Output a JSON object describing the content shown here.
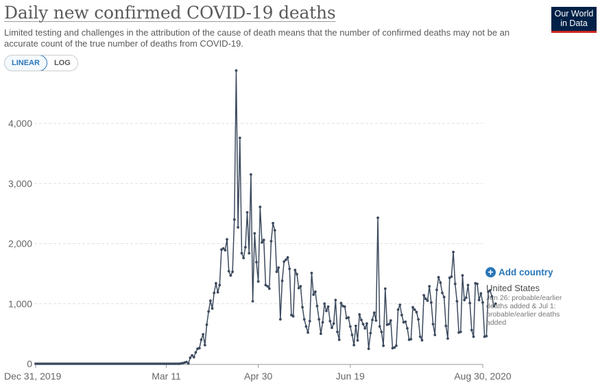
{
  "title": "Daily new confirmed COVID-19 deaths",
  "subtitle": "Limited testing and challenges in the attribution of the cause of death means that the number of confirmed deaths may not be an accurate count of the true number of deaths from COVID-19.",
  "logo": {
    "line1": "Our World",
    "line2": "in Data"
  },
  "scale_toggle": {
    "linear": "LINEAR",
    "log": "LOG",
    "active": "linear"
  },
  "add_country_label": "Add country",
  "entity_label": "United States",
  "annotation": "Jun 26: probable/earlier deaths added & Jul 1: probable/earlier deaths added",
  "colors": {
    "line": "#3c4a5e",
    "grid": "#dddddd",
    "axis_text": "#666666",
    "link": "#2a76b9"
  },
  "chart_data": {
    "type": "line",
    "title": "Daily new confirmed COVID-19 deaths",
    "xlabel": "",
    "ylabel": "",
    "ylim": [
      0,
      4800
    ],
    "xlim": [
      "Dec 31, 2019",
      "Aug 30, 2020"
    ],
    "grid": true,
    "y_ticks": [
      {
        "value": 0,
        "label": "0"
      },
      {
        "value": 1000,
        "label": "1,000"
      },
      {
        "value": 2000,
        "label": "2,000"
      },
      {
        "value": 3000,
        "label": "3,000"
      },
      {
        "value": 4000,
        "label": "4,000"
      }
    ],
    "x_ticks": [
      {
        "day": 0,
        "label": "Dec 31, 2019"
      },
      {
        "day": 71,
        "label": "Mar 11"
      },
      {
        "day": 121,
        "label": "Apr 30"
      },
      {
        "day": 171,
        "label": "Jun 19"
      },
      {
        "day": 243,
        "label": "Aug 30, 2020"
      }
    ],
    "series": [
      {
        "name": "United States",
        "start_date": "2019-12-31",
        "values": [
          0,
          0,
          0,
          0,
          0,
          0,
          0,
          0,
          0,
          0,
          0,
          0,
          0,
          0,
          0,
          0,
          0,
          0,
          0,
          0,
          0,
          0,
          0,
          0,
          0,
          0,
          0,
          0,
          0,
          0,
          0,
          0,
          0,
          0,
          0,
          0,
          0,
          0,
          0,
          0,
          0,
          0,
          0,
          0,
          0,
          0,
          0,
          0,
          0,
          0,
          0,
          0,
          0,
          0,
          0,
          0,
          0,
          0,
          0,
          0,
          0,
          0,
          0,
          0,
          0,
          0,
          0,
          0,
          0,
          0,
          0,
          0,
          0,
          0,
          0,
          0,
          0,
          0,
          0,
          5,
          10,
          20,
          30,
          5,
          100,
          140,
          110,
          190,
          250,
          260,
          400,
          490,
          310,
          650,
          870,
          1050,
          920,
          1180,
          1340,
          1190,
          1310,
          1900,
          1920,
          1890,
          2070,
          1540,
          1470,
          1530,
          2400,
          4880,
          2270,
          3760,
          1840,
          1760,
          1940,
          2520,
          1840,
          3150,
          1040,
          2170,
          1690,
          1370,
          2610,
          2020,
          2060,
          1310,
          1290,
          1250,
          2040,
          2340,
          2220,
          1530,
          1600,
          740,
          1380,
          1700,
          1730,
          1770,
          1580,
          810,
          790,
          1560,
          1490,
          1260,
          1290,
          940,
          740,
          620,
          520,
          710,
          1510,
          1150,
          1200,
          960,
          740,
          500,
          690,
          1000,
          880,
          950,
          710,
          600,
          670,
          1060,
          530,
          400,
          1010,
          960,
          950,
          760,
          770,
          620,
          480,
          310,
          630,
          390,
          820,
          730,
          660,
          590,
          670,
          250,
          510,
          730,
          850,
          720,
          2430,
          620,
          530,
          300,
          1250,
          650,
          660,
          720,
          260,
          270,
          300,
          900,
          980,
          810,
          690,
          700,
          590,
          400,
          410,
          940,
          900,
          860,
          740,
          450,
          390,
          1140,
          1080,
          1050,
          1290,
          1020,
          660,
          480,
          1230,
          1440,
          1350,
          1180,
          1110,
          630,
          420,
          1430,
          1450,
          1860,
          1330,
          1040,
          520,
          530,
          1470,
          1060,
          1100,
          1310,
          1010,
          560,
          450,
          1340,
          1330,
          1060,
          1170,
          1020,
          450,
          460,
          1200,
          1220,
          1120,
          960,
          1000
        ]
      }
    ]
  }
}
